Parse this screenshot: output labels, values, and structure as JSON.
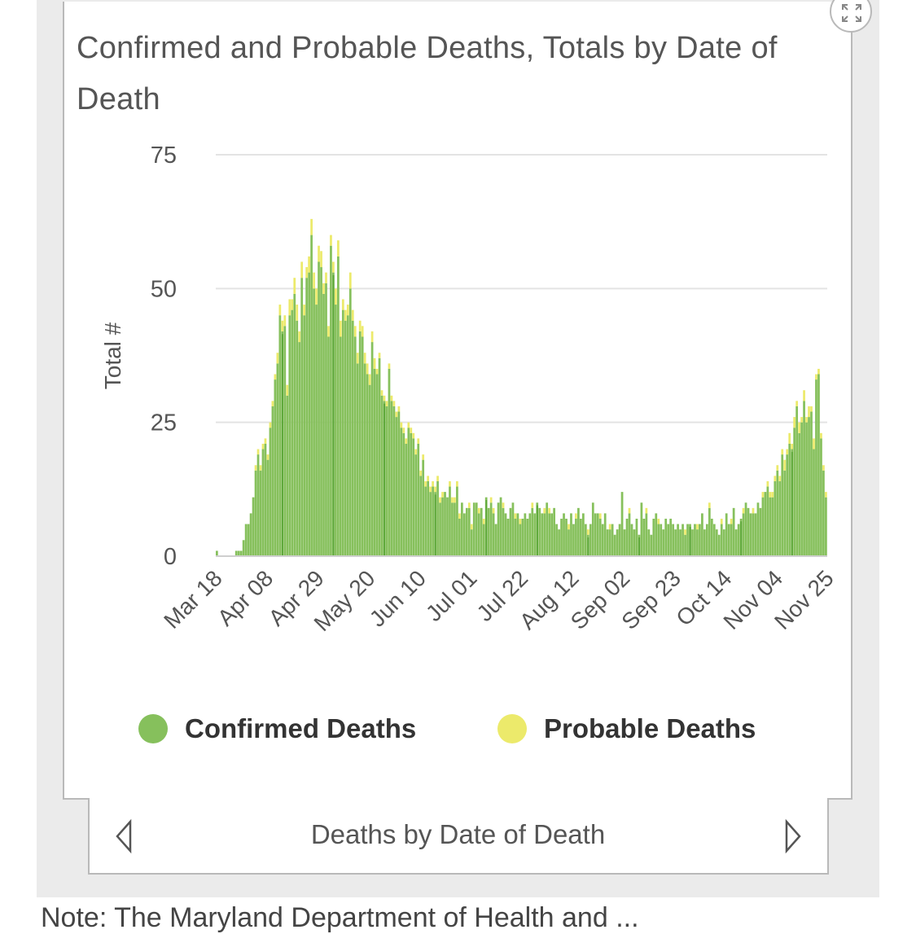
{
  "header": {
    "title": "Confirmed and Probable Deaths, Totals by Date of Death",
    "expand_icon": "expand-arrows-icon"
  },
  "chart_data": {
    "type": "bar",
    "stacked": true,
    "title": "Confirmed and Probable Deaths, Totals by Date of Death",
    "xlabel": "",
    "ylabel": "Total #",
    "ylim": [
      0,
      75
    ],
    "yticks": [
      0,
      25,
      50,
      75
    ],
    "grid": true,
    "legend_position": "bottom",
    "x_range": [
      "2020-03-18",
      "2020-12-06"
    ],
    "x_tick_labels": [
      "Mar 18",
      "Apr 08",
      "Apr 29",
      "May 20",
      "Jun 10",
      "Jul 01",
      "Jul 22",
      "Aug 12",
      "Sep 02",
      "Sep 23",
      "Oct 14",
      "Nov 04",
      "Nov 25"
    ],
    "series": [
      {
        "name": "Confirmed Deaths",
        "color": "#86c05c",
        "values": [
          1,
          0,
          0,
          0,
          0,
          0,
          0,
          0,
          1,
          1,
          1,
          3,
          6,
          6,
          8,
          11,
          16,
          19,
          16,
          20,
          21,
          18,
          24,
          28,
          33,
          36,
          45,
          42,
          43,
          30,
          45,
          46,
          49,
          44,
          40,
          52,
          45,
          52,
          53,
          60,
          50,
          47,
          55,
          54,
          49,
          51,
          41,
          58,
          53,
          47,
          56,
          41,
          46,
          44,
          45,
          50,
          44,
          41,
          36,
          42,
          41,
          36,
          34,
          32,
          40,
          35,
          34,
          37,
          30,
          29,
          28,
          35,
          29,
          28,
          26,
          27,
          24,
          23,
          21,
          24,
          23,
          22,
          19,
          21,
          15,
          18,
          13,
          14,
          12,
          13,
          12,
          14,
          10,
          11,
          12,
          11,
          13,
          10,
          10,
          13,
          7,
          10,
          8,
          9,
          9,
          5,
          10,
          10,
          8,
          9,
          6,
          11,
          9,
          10,
          8,
          6,
          10,
          11,
          9,
          8,
          7,
          9,
          10,
          7,
          8,
          6,
          7,
          8,
          7,
          8,
          9,
          8,
          10,
          9,
          8,
          8,
          10,
          8,
          8,
          9,
          6,
          5,
          7,
          8,
          7,
          5,
          8,
          6,
          7,
          9,
          7,
          8,
          6,
          4,
          6,
          10,
          8,
          8,
          7,
          6,
          8,
          5,
          5,
          6,
          4,
          5,
          6,
          12,
          5,
          7,
          8,
          6,
          5,
          7,
          4,
          10,
          7,
          8,
          5,
          4,
          7,
          8,
          6,
          6,
          5,
          7,
          6,
          7,
          6,
          5,
          6,
          5,
          6,
          4,
          6,
          6,
          5,
          6,
          5,
          6,
          8,
          5,
          6,
          9,
          7,
          6,
          5,
          4,
          6,
          5,
          8,
          6,
          6,
          9,
          5,
          6,
          7,
          8,
          10,
          9,
          8,
          8,
          8,
          10,
          9,
          11,
          12,
          13,
          11,
          11,
          14,
          16,
          14,
          19,
          16,
          19,
          21,
          20,
          24,
          28,
          23,
          25,
          29,
          25,
          26,
          27,
          20,
          33,
          34,
          22,
          16,
          11
        ],
        "markers": "per-day values, Mar 18 to Dec 06"
      },
      {
        "name": "Probable Deaths",
        "color": "#ecea6b",
        "values": [
          0,
          0,
          0,
          0,
          0,
          0,
          0,
          0,
          0,
          0,
          0,
          0,
          0,
          0,
          0,
          0,
          1,
          1,
          1,
          1,
          1,
          1,
          1,
          1,
          1,
          2,
          2,
          2,
          2,
          2,
          3,
          2,
          3,
          3,
          2,
          3,
          2,
          2,
          3,
          3,
          3,
          3,
          3,
          3,
          2,
          2,
          2,
          2,
          2,
          3,
          3,
          3,
          2,
          2,
          2,
          3,
          2,
          2,
          2,
          2,
          2,
          2,
          2,
          2,
          2,
          2,
          1,
          1,
          1,
          1,
          1,
          1,
          1,
          1,
          1,
          1,
          1,
          1,
          1,
          1,
          1,
          1,
          1,
          1,
          1,
          1,
          1,
          1,
          1,
          1,
          1,
          1,
          1,
          1,
          0,
          0,
          1,
          1,
          1,
          1,
          1,
          0,
          0,
          0,
          1,
          1,
          0,
          0,
          1,
          0,
          1,
          0,
          0,
          1,
          1,
          0,
          0,
          0,
          1,
          0,
          0,
          0,
          0,
          1,
          0,
          1,
          0,
          0,
          0,
          0,
          1,
          0,
          0,
          0,
          0,
          1,
          0,
          1,
          0,
          0,
          0,
          0,
          0,
          0,
          0,
          1,
          0,
          0,
          1,
          0,
          0,
          0,
          0,
          1,
          0,
          0,
          0,
          0,
          1,
          0,
          0,
          0,
          1,
          0,
          0,
          0,
          0,
          0,
          0,
          0,
          1,
          0,
          0,
          0,
          0,
          0,
          0,
          1,
          0,
          0,
          0,
          0,
          1,
          0,
          0,
          0,
          0,
          0,
          0,
          0,
          0,
          0,
          0,
          1,
          0,
          0,
          0,
          0,
          1,
          0,
          0,
          0,
          0,
          1,
          0,
          0,
          0,
          0,
          1,
          0,
          0,
          0,
          1,
          0,
          0,
          0,
          0,
          1,
          0,
          0,
          0,
          1,
          0,
          0,
          0,
          1,
          0,
          1,
          1,
          1,
          1,
          1,
          1,
          1,
          2,
          1,
          2,
          1,
          2,
          1,
          2,
          1,
          2,
          1,
          2,
          1,
          2,
          1,
          1,
          1,
          1,
          1
        ]
      }
    ]
  },
  "legend": {
    "items": [
      {
        "label": "Confirmed Deaths",
        "color": "#86c05c"
      },
      {
        "label": "Probable Deaths",
        "color": "#ecea6b"
      }
    ]
  },
  "footer": {
    "label": "Deaths by Date of Death",
    "prev_icon": "chevron-left-icon",
    "next_icon": "chevron-right-icon"
  },
  "caption": {
    "text": "Note: The Maryland Department of Health and ..."
  }
}
